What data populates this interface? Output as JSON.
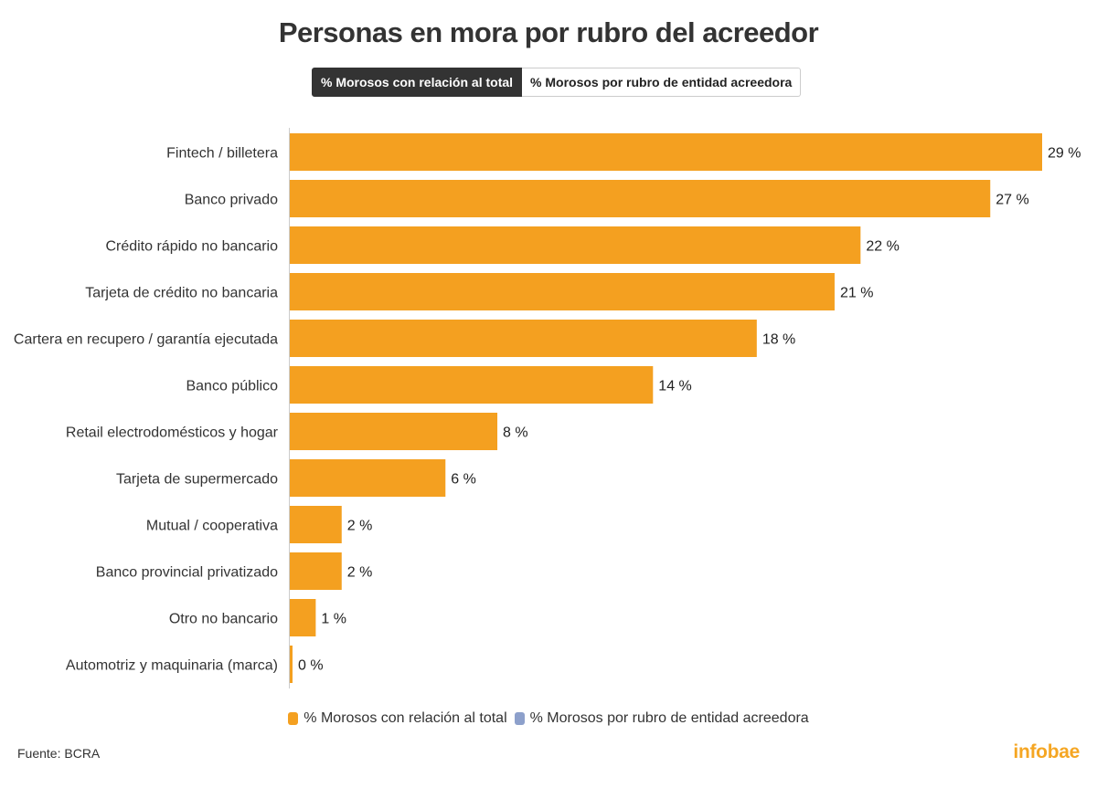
{
  "header": {
    "title": "Personas en mora por rubro del acreedor"
  },
  "toggles": [
    {
      "label": "% Morosos con relación al total",
      "active": true
    },
    {
      "label": "% Morosos por rubro de entidad acreedora",
      "active": false
    }
  ],
  "colors": {
    "bar": "#f4a020",
    "series2": "#8da0cb",
    "axis": "#cccccc",
    "text": "#333333"
  },
  "chart_data": {
    "type": "bar",
    "orientation": "horizontal",
    "categories": [
      "Fintech / billetera",
      "Banco privado",
      "Crédito rápido no bancario",
      "Tarjeta de crédito no bancaria",
      "Cartera en recupero / garantía ejecutada",
      "Banco público",
      "Retail electrodomésticos y hogar",
      "Tarjeta de supermercado",
      "Mutual / cooperativa",
      "Banco provincial privatizado",
      "Otro no bancario",
      "Automotriz y maquinaria (marca)"
    ],
    "series": [
      {
        "name": "% Morosos con relación al total",
        "values": [
          29,
          27,
          22,
          21,
          18,
          14,
          8,
          6,
          2,
          2,
          1,
          0
        ],
        "labels": [
          "29 %",
          "27 %",
          "22 %",
          "21 %",
          "18 %",
          "14 %",
          "8 %",
          "6 %",
          "2 %",
          "2 %",
          "1 %",
          "0 %"
        ]
      }
    ],
    "xlim": [
      0,
      29
    ],
    "grid": false,
    "legend_position": "bottom"
  },
  "legend": [
    {
      "label": "% Morosos con relación al total",
      "color": "#f4a020"
    },
    {
      "label": "% Morosos por rubro de entidad acreedora",
      "color": "#8da0cb"
    }
  ],
  "footer": {
    "source": "Fuente: BCRA",
    "brand": "infobae"
  }
}
